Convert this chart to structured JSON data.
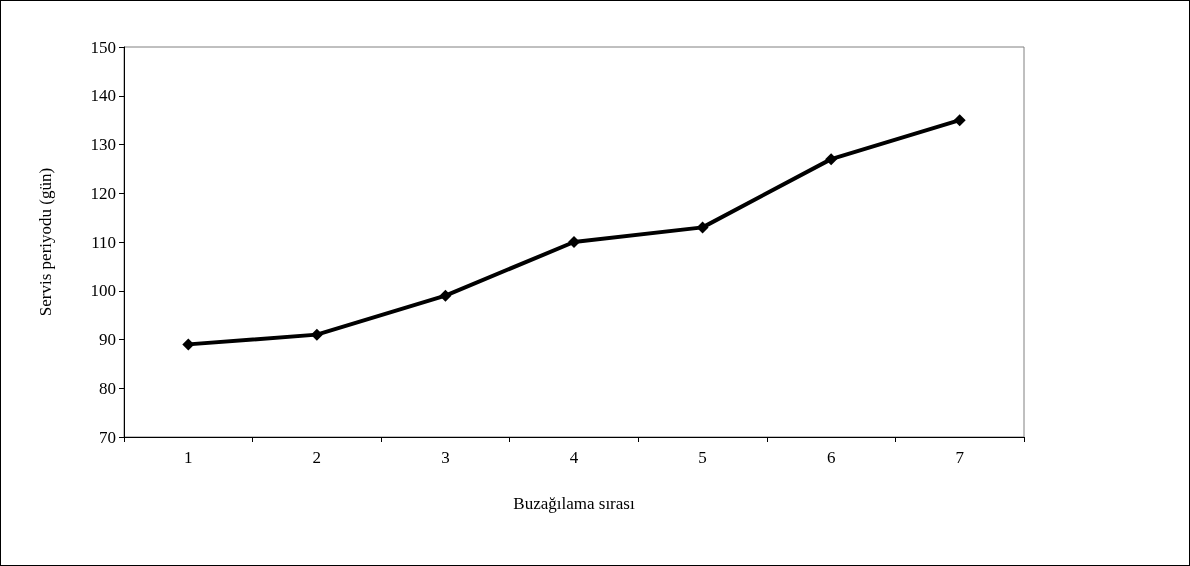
{
  "chart_data": {
    "type": "line",
    "xlabel": "Buzağılama sırası",
    "ylabel": "Servis periyodu (gün)",
    "categories": [
      "1",
      "2",
      "3",
      "4",
      "5",
      "6",
      "7"
    ],
    "series": [
      {
        "color": "#000000",
        "values": [
          89,
          91,
          99,
          110,
          113,
          127,
          135
        ]
      }
    ],
    "ylim": [
      70,
      150
    ],
    "yticks": [
      70,
      80,
      90,
      100,
      110,
      120,
      130,
      140,
      150
    ],
    "grid": false,
    "marker": "diamond",
    "line_style": "solid"
  }
}
